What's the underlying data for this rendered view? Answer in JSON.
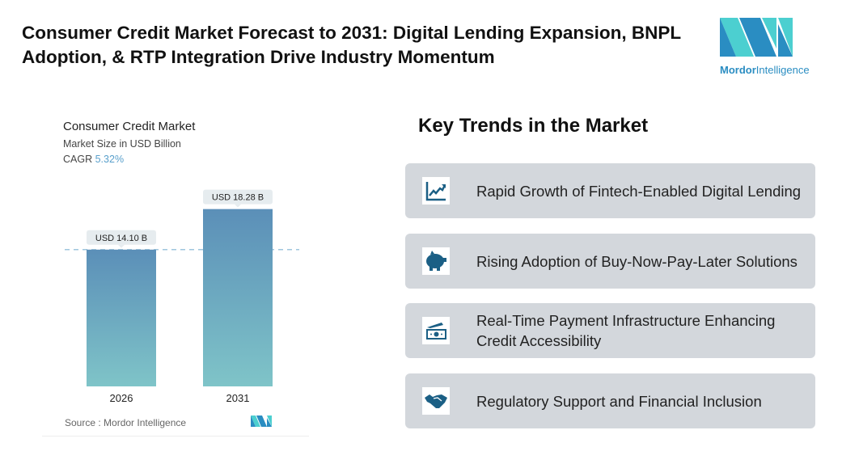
{
  "header": {
    "title": "Consumer Credit Market Forecast to 2031: Digital Lending Expansion, BNPL Adoption, & RTP Integration Drive Industry Momentum"
  },
  "logo": {
    "brand": "Mordor Intelligence",
    "part1": "Mordor",
    "part2": "Intelligence"
  },
  "chart_panel": {
    "title": "Consumer Credit Market",
    "subtitle": "Market Size in USD Billion",
    "cagr_label": "CAGR",
    "cagr_value": "5.32%",
    "source": "Source :  Mordor Intelligence"
  },
  "chart_data": {
    "type": "bar",
    "title": "Consumer Credit Market",
    "ylabel": "Market Size in USD Billion",
    "categories": [
      "2026",
      "2031"
    ],
    "values": [
      14.1,
      18.28
    ],
    "data_labels": [
      "USD 14.10 B",
      "USD 18.28 B"
    ],
    "ylim": [
      0,
      20
    ],
    "grid": false,
    "reference_line": 14.1,
    "colors": {
      "bar_top": "#5b8fb8",
      "bar_bottom": "#7fc4c8",
      "label_bg": "#e6ecef",
      "dash": "#7fb3d3"
    }
  },
  "trends": {
    "heading": "Key Trends in the Market",
    "items": [
      {
        "label": "Rapid Growth of Fintech-Enabled Digital Lending",
        "icon": "line-chart-icon"
      },
      {
        "label": "Rising Adoption of Buy-Now-Pay-Later Solutions",
        "icon": "piggy-bank-icon"
      },
      {
        "label": "Real-Time Payment Infrastructure Enhancing Credit Accessibility",
        "icon": "money-icon"
      },
      {
        "label": "Regulatory Support and Financial Inclusion",
        "icon": "handshake-icon"
      }
    ]
  },
  "colors": {
    "accent": "#1b5f85",
    "card_bg": "#d3d7dc",
    "logo_dark": "#2a8dc2",
    "logo_light": "#4ccfd0"
  }
}
